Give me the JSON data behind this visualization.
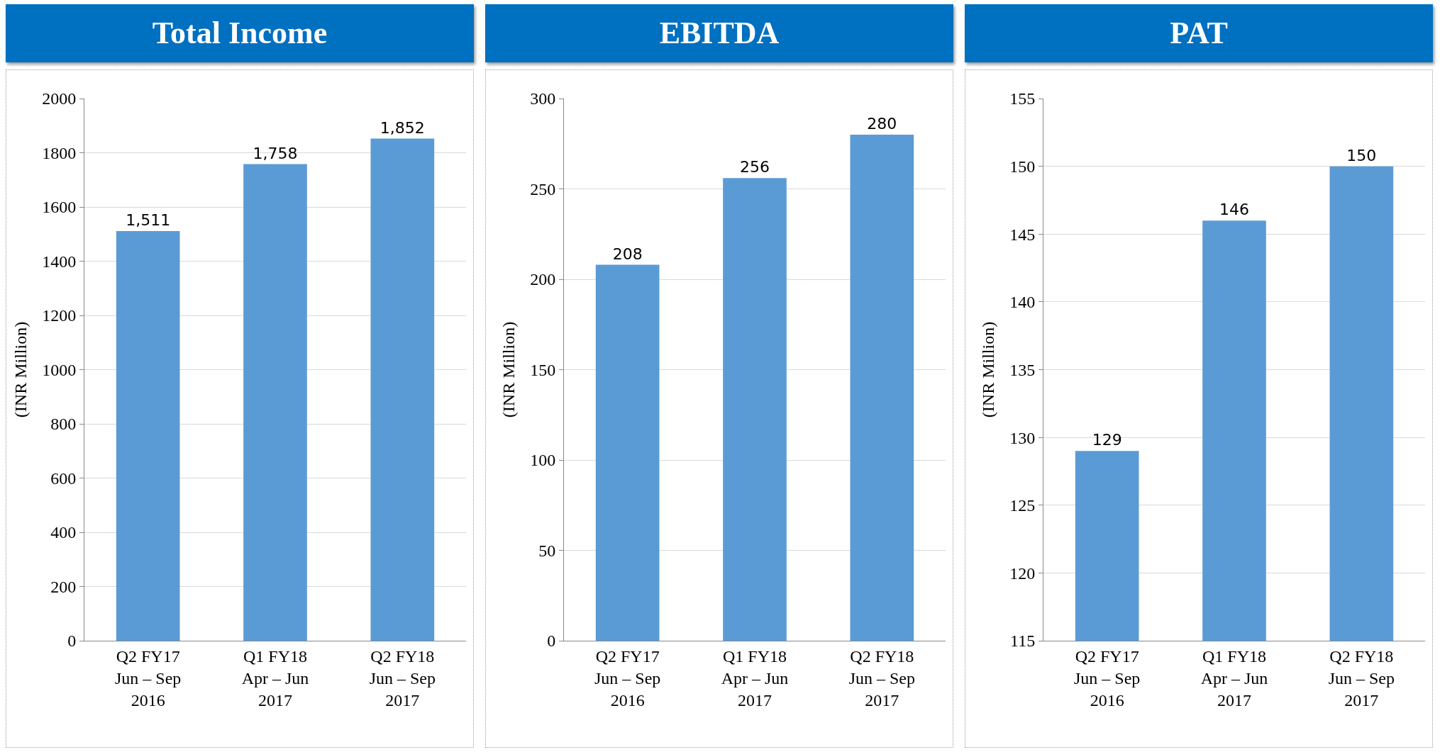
{
  "chart_data": [
    {
      "type": "bar",
      "title": "Total Income",
      "ylabel": "(INR Million)",
      "categories": [
        "Q2 FY17\nJun – Sep\n2016",
        "Q1 FY18\nApr – Jun\n2017",
        "Q2 FY18\nJun – Sep\n2017"
      ],
      "values": [
        1511,
        1758,
        1852
      ],
      "value_labels": [
        "1,511",
        "1,758",
        "1,852"
      ],
      "color": "#5b9bd5",
      "ylim": [
        0,
        2000
      ],
      "yticks": [
        0,
        200,
        400,
        600,
        800,
        1000,
        1200,
        1400,
        1600,
        1800,
        2000
      ],
      "grid": "y"
    },
    {
      "type": "bar",
      "title": "EBITDA",
      "ylabel": "(INR Million)",
      "categories": [
        "Q2 FY17\nJun – Sep\n2016",
        "Q1 FY18\nApr – Jun\n2017",
        "Q2 FY18\nJun – Sep\n2017"
      ],
      "values": [
        208,
        256,
        280
      ],
      "data_labels": true,
      "color": "#5b9bd5",
      "ylim": [
        0,
        300
      ],
      "yticks": [
        0,
        50,
        100,
        150,
        200,
        250,
        300
      ],
      "grid": "y"
    },
    {
      "type": "bar",
      "title": "PAT",
      "ylabel": "(INR Million)",
      "categories": [
        "Q2 FY17\nJun – Sep\n2016",
        "Q1 FY18\nApr – Jun\n2017",
        "Q2 FY18\nJun – Sep\n2017"
      ],
      "values": [
        129,
        146,
        150
      ],
      "data_labels": true,
      "color": "#5b9bd5",
      "ylim": [
        115,
        155
      ],
      "yticks": [
        115,
        120,
        125,
        130,
        135,
        140,
        145,
        150,
        155
      ],
      "grid": "y"
    }
  ]
}
